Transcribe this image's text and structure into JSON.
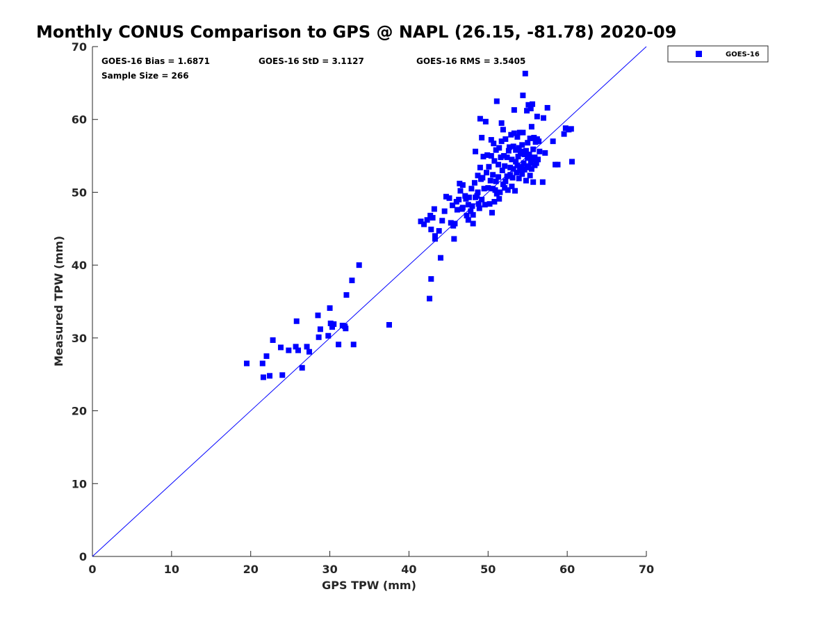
{
  "chart_data": {
    "type": "scatter",
    "title": "Monthly CONUS Comparison to GPS @ NAPL (26.15, -81.78) 2020-09",
    "xlabel": "GPS TPW (mm)",
    "ylabel": "Measured TPW (mm)",
    "xlim": [
      0,
      70
    ],
    "ylim": [
      0,
      70
    ],
    "xticks": [
      "0",
      "10",
      "20",
      "30",
      "40",
      "50",
      "60",
      "70"
    ],
    "yticks": [
      "0",
      "10",
      "20",
      "30",
      "40",
      "50",
      "60",
      "70"
    ],
    "grid": false,
    "legend_position": "outside-top-right",
    "reference_line": {
      "x": [
        0,
        70
      ],
      "y": [
        0,
        70
      ],
      "color": "#0000ff"
    },
    "stats": {
      "bias": "GOES-16 Bias = 1.6871",
      "std": "GOES-16 StD = 3.1127",
      "rms": "GOES-16 RMS = 3.5405",
      "sample_size": "Sample Size = 266"
    },
    "series": [
      {
        "name": "GOES-16",
        "color": "#0000ff",
        "marker": "square",
        "points": [
          [
            19.5,
            26.5
          ],
          [
            21.5,
            26.5
          ],
          [
            21.6,
            24.6
          ],
          [
            22.0,
            27.5
          ],
          [
            22.4,
            24.8
          ],
          [
            22.8,
            29.7
          ],
          [
            23.8,
            28.7
          ],
          [
            24.0,
            24.9
          ],
          [
            24.8,
            28.3
          ],
          [
            25.7,
            28.8
          ],
          [
            25.8,
            32.3
          ],
          [
            26.0,
            28.3
          ],
          [
            26.5,
            25.9
          ],
          [
            27.1,
            28.8
          ],
          [
            27.4,
            28.1
          ],
          [
            28.5,
            33.1
          ],
          [
            28.6,
            30.1
          ],
          [
            28.8,
            31.2
          ],
          [
            29.8,
            30.3
          ],
          [
            30.0,
            34.1
          ],
          [
            30.1,
            32.0
          ],
          [
            30.3,
            31.5
          ],
          [
            30.5,
            31.9
          ],
          [
            31.1,
            29.1
          ],
          [
            31.6,
            31.7
          ],
          [
            31.9,
            31.6
          ],
          [
            32.0,
            31.3
          ],
          [
            32.1,
            35.9
          ],
          [
            32.8,
            37.9
          ],
          [
            33.0,
            29.1
          ],
          [
            33.7,
            40.0
          ],
          [
            37.5,
            31.8
          ],
          [
            41.5,
            46.0
          ],
          [
            41.9,
            45.6
          ],
          [
            42.3,
            46.2
          ],
          [
            42.6,
            35.4
          ],
          [
            42.7,
            46.8
          ],
          [
            42.8,
            38.1
          ],
          [
            42.8,
            44.9
          ],
          [
            43.0,
            46.5
          ],
          [
            43.2,
            47.7
          ],
          [
            43.3,
            44.0
          ],
          [
            43.3,
            43.6
          ],
          [
            43.8,
            44.7
          ],
          [
            44.0,
            41.0
          ],
          [
            44.2,
            46.1
          ],
          [
            44.5,
            47.4
          ],
          [
            44.7,
            49.4
          ],
          [
            45.1,
            49.2
          ],
          [
            45.3,
            45.8
          ],
          [
            45.5,
            48.2
          ],
          [
            45.6,
            45.4
          ],
          [
            45.7,
            43.6
          ],
          [
            45.8,
            45.7
          ],
          [
            46.0,
            48.7
          ],
          [
            46.1,
            47.6
          ],
          [
            46.3,
            49.0
          ],
          [
            46.4,
            51.2
          ],
          [
            46.5,
            50.2
          ],
          [
            46.7,
            47.7
          ],
          [
            46.8,
            51.0
          ],
          [
            46.8,
            47.9
          ],
          [
            47.1,
            49.5
          ],
          [
            47.2,
            49.1
          ],
          [
            47.3,
            46.8
          ],
          [
            47.5,
            48.3
          ],
          [
            47.5,
            46.2
          ],
          [
            47.6,
            49.3
          ],
          [
            47.8,
            47.4
          ],
          [
            47.9,
            50.5
          ],
          [
            48.0,
            48.1
          ],
          [
            48.1,
            46.9
          ],
          [
            48.1,
            45.7
          ],
          [
            48.3,
            51.3
          ],
          [
            48.4,
            49.3
          ],
          [
            48.4,
            55.6
          ],
          [
            48.6,
            49.5
          ],
          [
            48.7,
            50.0
          ],
          [
            48.7,
            52.3
          ],
          [
            48.8,
            48.4
          ],
          [
            48.9,
            47.8
          ],
          [
            49.0,
            53.4
          ],
          [
            49.0,
            60.1
          ],
          [
            49.1,
            51.8
          ],
          [
            49.2,
            49.0
          ],
          [
            49.2,
            57.5
          ],
          [
            49.3,
            52.0
          ],
          [
            49.4,
            54.9
          ],
          [
            49.5,
            50.5
          ],
          [
            49.6,
            48.3
          ],
          [
            49.7,
            59.7
          ],
          [
            49.8,
            52.7
          ],
          [
            49.9,
            55.1
          ],
          [
            50.0,
            50.6
          ],
          [
            50.1,
            53.5
          ],
          [
            50.2,
            48.4
          ],
          [
            50.3,
            51.6
          ],
          [
            50.4,
            55.0
          ],
          [
            50.4,
            57.2
          ],
          [
            50.5,
            47.2
          ],
          [
            50.6,
            50.5
          ],
          [
            50.6,
            52.4
          ],
          [
            50.7,
            56.7
          ],
          [
            50.8,
            48.7
          ],
          [
            50.8,
            54.3
          ],
          [
            50.9,
            50.3
          ],
          [
            51.0,
            55.8
          ],
          [
            51.0,
            51.5
          ],
          [
            51.1,
            62.5
          ],
          [
            51.1,
            49.8
          ],
          [
            51.3,
            52.1
          ],
          [
            51.3,
            53.8
          ],
          [
            51.4,
            49.1
          ],
          [
            51.4,
            56.1
          ],
          [
            51.5,
            50.0
          ],
          [
            51.6,
            54.8
          ],
          [
            51.7,
            57.0
          ],
          [
            51.7,
            59.5
          ],
          [
            51.8,
            53.0
          ],
          [
            51.9,
            51.1
          ],
          [
            51.9,
            58.6
          ],
          [
            52.0,
            55.0
          ],
          [
            52.1,
            50.6
          ],
          [
            52.1,
            53.6
          ],
          [
            52.2,
            51.5
          ],
          [
            52.2,
            57.3
          ],
          [
            52.4,
            52.2
          ],
          [
            52.4,
            54.8
          ],
          [
            52.5,
            50.3
          ],
          [
            52.6,
            55.7
          ],
          [
            52.7,
            56.2
          ],
          [
            52.8,
            52.4
          ],
          [
            52.8,
            53.4
          ],
          [
            52.9,
            57.9
          ],
          [
            53.0,
            50.8
          ],
          [
            53.0,
            54.5
          ],
          [
            53.1,
            52.0
          ],
          [
            53.2,
            56.3
          ],
          [
            53.2,
            53.2
          ],
          [
            53.3,
            58.1
          ],
          [
            53.3,
            61.3
          ],
          [
            53.4,
            50.2
          ],
          [
            53.5,
            54.2
          ],
          [
            53.5,
            55.8
          ],
          [
            53.6,
            52.7
          ],
          [
            53.7,
            53.7
          ],
          [
            53.7,
            57.6
          ],
          [
            53.8,
            54.9
          ],
          [
            53.9,
            51.9
          ],
          [
            53.9,
            56.1
          ],
          [
            54.0,
            53.0
          ],
          [
            54.0,
            58.2
          ],
          [
            54.1,
            55.3
          ],
          [
            54.2,
            53.5
          ],
          [
            54.2,
            55.6
          ],
          [
            54.3,
            52.5
          ],
          [
            54.3,
            56.5
          ],
          [
            54.4,
            63.3
          ],
          [
            54.4,
            58.2
          ],
          [
            54.5,
            54.0
          ],
          [
            54.6,
            55.2
          ],
          [
            54.6,
            53.1
          ],
          [
            54.7,
            66.3
          ],
          [
            54.8,
            55.7
          ],
          [
            54.8,
            51.6
          ],
          [
            54.9,
            61.2
          ],
          [
            54.9,
            53.4
          ],
          [
            55.0,
            56.8
          ],
          [
            55.0,
            54.7
          ],
          [
            55.1,
            62.0
          ],
          [
            55.1,
            53.6
          ],
          [
            55.2,
            55.2
          ],
          [
            55.3,
            52.3
          ],
          [
            55.3,
            57.4
          ],
          [
            55.4,
            54.0
          ],
          [
            55.4,
            61.5
          ],
          [
            55.5,
            53.2
          ],
          [
            55.5,
            59.0
          ],
          [
            55.6,
            62.1
          ],
          [
            55.6,
            54.5
          ],
          [
            55.7,
            55.9
          ],
          [
            55.7,
            51.4
          ],
          [
            55.8,
            57.5
          ],
          [
            55.9,
            53.7
          ],
          [
            55.9,
            54.8
          ],
          [
            56.0,
            56.9
          ],
          [
            56.1,
            54.0
          ],
          [
            56.2,
            60.4
          ],
          [
            56.2,
            57.3
          ],
          [
            56.3,
            54.5
          ],
          [
            56.4,
            57.0
          ],
          [
            56.5,
            55.6
          ],
          [
            56.9,
            51.4
          ],
          [
            57.0,
            60.2
          ],
          [
            57.2,
            55.4
          ],
          [
            57.5,
            61.6
          ],
          [
            58.2,
            57.0
          ],
          [
            58.5,
            53.8
          ],
          [
            58.8,
            53.8
          ],
          [
            59.6,
            58.0
          ],
          [
            59.8,
            58.8
          ],
          [
            60.2,
            58.6
          ],
          [
            60.5,
            58.7
          ],
          [
            60.6,
            54.2
          ]
        ]
      }
    ]
  }
}
